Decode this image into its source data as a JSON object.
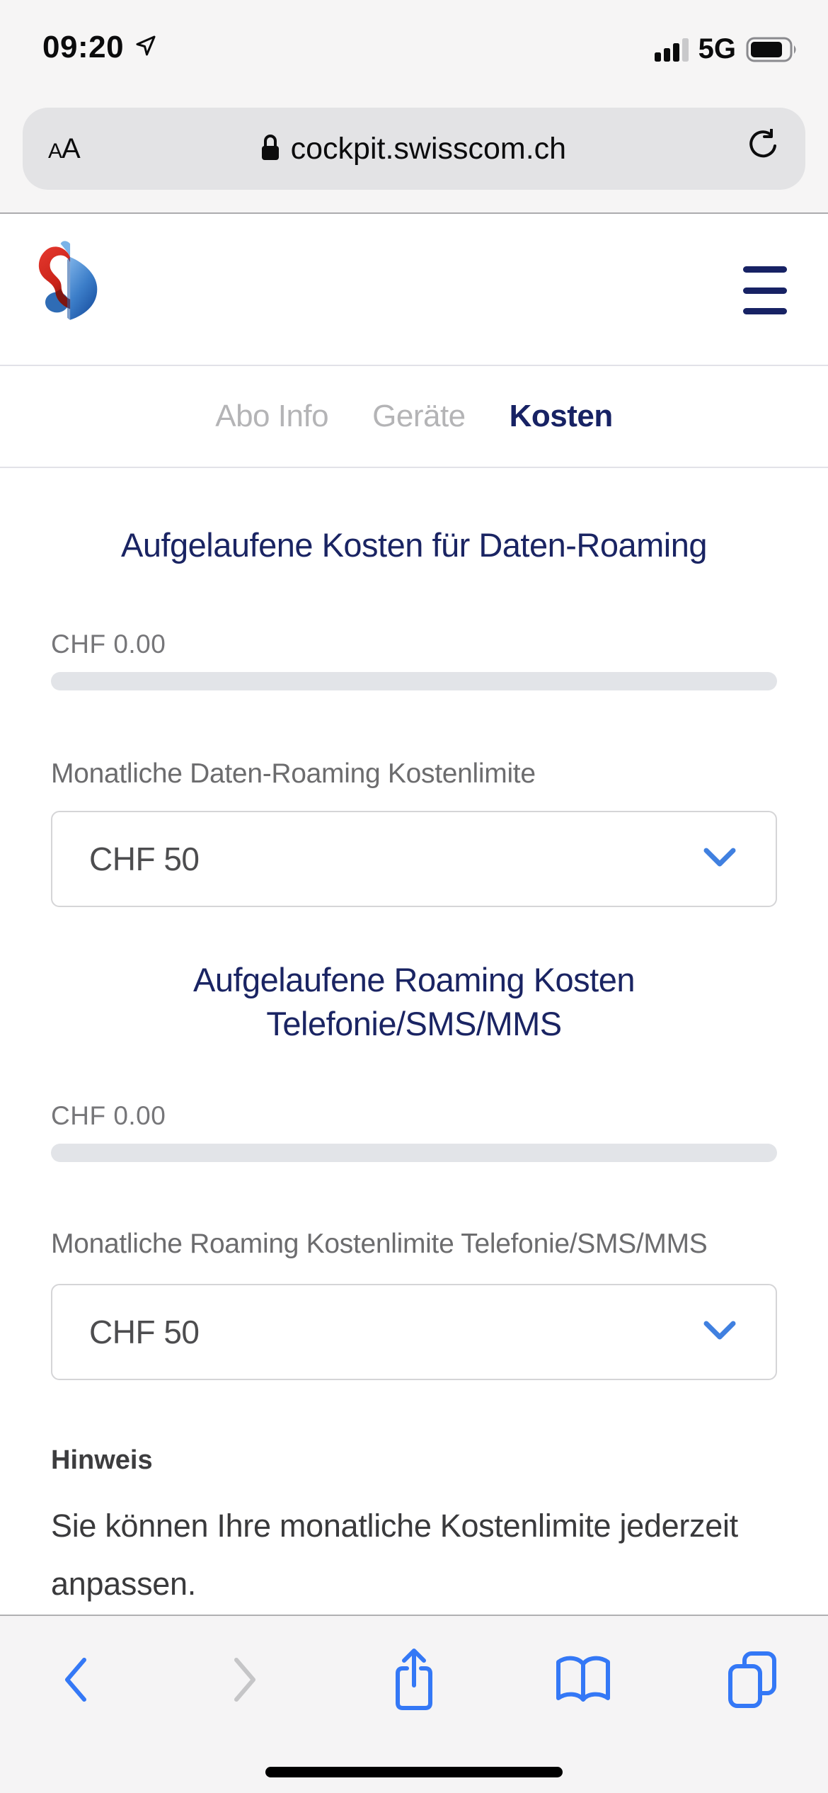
{
  "status_bar": {
    "time": "09:20",
    "network": "5G",
    "battery_level": "75%"
  },
  "address_bar": {
    "reader_label": "AA",
    "url": "cockpit.swisscom.ch"
  },
  "header": {
    "brand": "Swisscom"
  },
  "tabs": [
    {
      "label": "Abo Info",
      "active": false
    },
    {
      "label": "Geräte",
      "active": false
    },
    {
      "label": "Kosten",
      "active": true
    }
  ],
  "sections": {
    "data_roaming": {
      "title": "Aufgelaufene Kosten für Daten-Roaming",
      "amount": "CHF 0.00",
      "progress_percent": 0,
      "limit_label": "Monatliche Daten-Roaming Kostenlimite",
      "limit_value": "CHF 50"
    },
    "voice_roaming": {
      "title_line1": "Aufgelaufene Roaming Kosten",
      "title_line2": "Telefonie/SMS/MMS",
      "amount": "CHF 0.00",
      "progress_percent": 0,
      "limit_label": "Monatliche Roaming Kostenlimite Telefonie/SMS/MMS",
      "limit_value": "CHF 50"
    },
    "note": {
      "title": "Hinweis",
      "body": "Sie können Ihre monatliche Kostenlimite jederzeit anpassen."
    }
  },
  "icons": {
    "status": [
      "location-arrow-icon",
      "signal-bars-icon",
      "battery-icon"
    ],
    "address_bar": [
      "lock-icon",
      "reload-icon"
    ],
    "header": [
      "swisscom-logo",
      "hamburger-menu-icon"
    ],
    "selects": [
      "chevron-down-icon"
    ],
    "toolbar": [
      "back-icon",
      "forward-icon",
      "share-icon",
      "bookmarks-icon",
      "tabs-icon"
    ]
  },
  "colors": {
    "navy": "#1a2463",
    "tab_inactive": "#b4b4b6",
    "accent_blue": "#4080e0",
    "toolbar_blue": "#3478f6",
    "progress_track": "#e2e4e8",
    "chrome_bg": "#f6f5f5",
    "pill_bg": "#e3e3e5"
  }
}
